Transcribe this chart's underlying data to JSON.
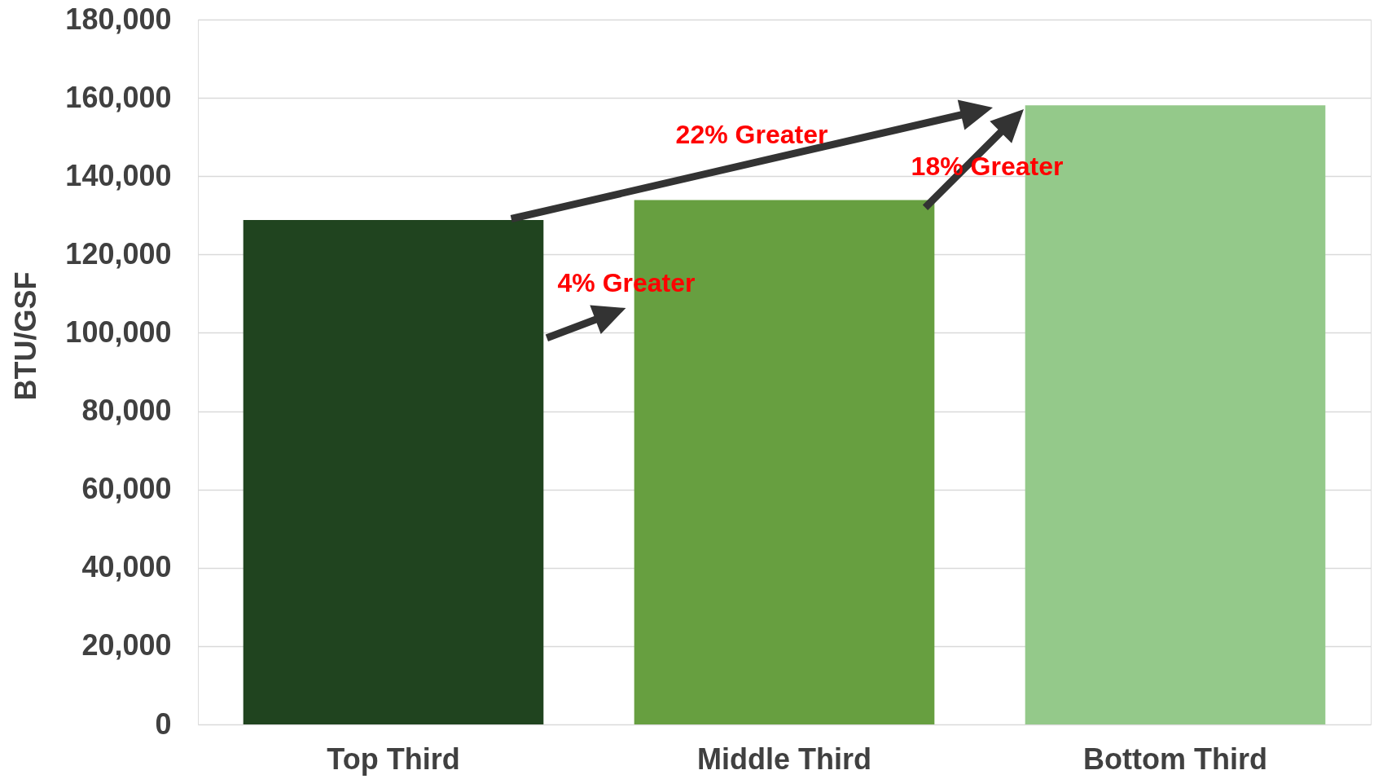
{
  "chart_data": {
    "type": "bar",
    "ylabel": "BTU/GSF",
    "categories": [
      "Top Third",
      "Middle Third",
      "Bottom Third"
    ],
    "values": [
      128800,
      133900,
      158100
    ],
    "colors": [
      "#20441f",
      "#679f40",
      "#94c98a"
    ],
    "ylim": [
      0,
      180000
    ],
    "yticks": [
      {
        "value": 0,
        "label": "0"
      },
      {
        "value": 20000,
        "label": "20,000"
      },
      {
        "value": 40000,
        "label": "40,000"
      },
      {
        "value": 60000,
        "label": "60,000"
      },
      {
        "value": 80000,
        "label": "80,000"
      },
      {
        "value": 100000,
        "label": "100,000"
      },
      {
        "value": 120000,
        "label": "120,000"
      },
      {
        "value": 140000,
        "label": "140,000"
      },
      {
        "value": 160000,
        "label": "160,000"
      },
      {
        "value": 180000,
        "label": "180,000"
      }
    ],
    "grid": "y",
    "annotations": [
      "22% Greater",
      "18% Greater",
      "4% Greater"
    ]
  }
}
